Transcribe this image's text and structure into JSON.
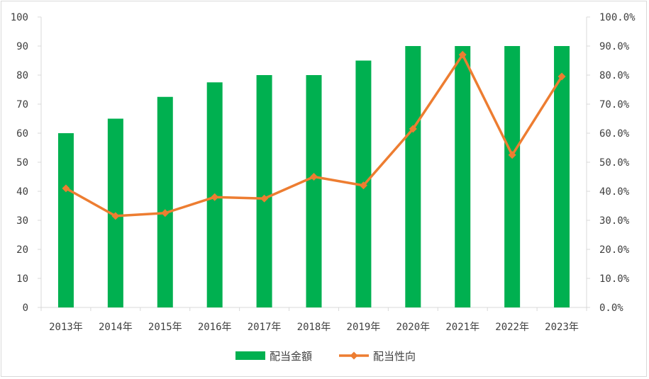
{
  "chart_data": {
    "type": "bar+line",
    "categories": [
      "2013年",
      "2014年",
      "2015年",
      "2016年",
      "2017年",
      "2018年",
      "2019年",
      "2020年",
      "2021年",
      "2022年",
      "2023年"
    ],
    "series": [
      {
        "name": "配当金額",
        "type": "bar",
        "axis": "left",
        "values": [
          60,
          65,
          72.5,
          77.5,
          80,
          80,
          85,
          90,
          90,
          90,
          90
        ]
      },
      {
        "name": "配当性向",
        "type": "line",
        "axis": "right",
        "values": [
          41.0,
          31.5,
          32.5,
          38.0,
          37.5,
          45.0,
          42.0,
          61.5,
          87.0,
          52.5,
          79.5
        ]
      }
    ],
    "y_left": {
      "min": 0,
      "max": 100,
      "step": 10,
      "ticks": [
        "0",
        "10",
        "20",
        "30",
        "40",
        "50",
        "60",
        "70",
        "80",
        "90",
        "100"
      ]
    },
    "y_right": {
      "min": 0,
      "max": 100,
      "step": 10,
      "ticks": [
        "0.0%",
        "10.0%",
        "20.0%",
        "30.0%",
        "40.0%",
        "50.0%",
        "60.0%",
        "70.0%",
        "80.0%",
        "90.0%",
        "100.0%"
      ]
    },
    "grid": false,
    "legend_position": "bottom",
    "colors": {
      "bar": "#00b050",
      "line": "#ed7d31",
      "axis": "#d9d9d9",
      "text": "#404040"
    }
  }
}
